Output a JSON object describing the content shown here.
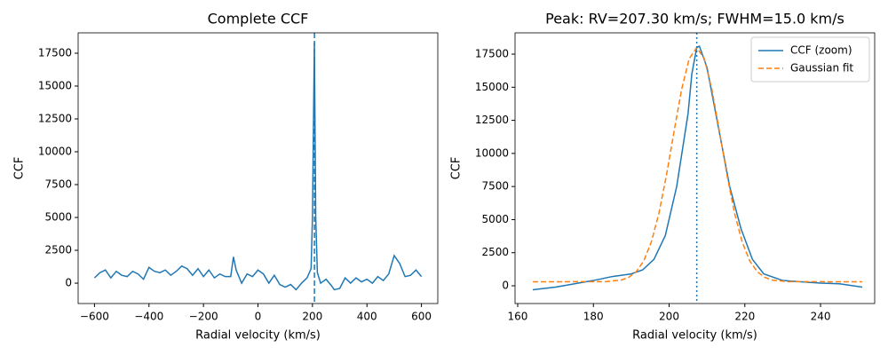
{
  "chart_data": [
    {
      "type": "line",
      "title": "Complete CCF",
      "x_label": "Radial velocity (km/s)",
      "y_label": "CCF",
      "x": [
        -600,
        -580,
        -560,
        -540,
        -520,
        -500,
        -480,
        -460,
        -440,
        -420,
        -400,
        -380,
        -360,
        -340,
        -320,
        -300,
        -280,
        -260,
        -240,
        -220,
        -200,
        -180,
        -160,
        -140,
        -120,
        -100,
        -90,
        -80,
        -60,
        -40,
        -20,
        0,
        20,
        40,
        60,
        80,
        100,
        120,
        140,
        160,
        180,
        195,
        200,
        207,
        212,
        218,
        230,
        250,
        270,
        280,
        300,
        320,
        340,
        360,
        380,
        400,
        420,
        440,
        460,
        480,
        500,
        520,
        540,
        560,
        580,
        600
      ],
      "values": [
        400,
        800,
        1000,
        400,
        900,
        600,
        500,
        900,
        700,
        300,
        1200,
        900,
        800,
        1000,
        600,
        900,
        1300,
        1100,
        600,
        1100,
        500,
        1000,
        400,
        700,
        500,
        500,
        2000,
        1000,
        0,
        700,
        500,
        1000,
        700,
        0,
        600,
        -100,
        -300,
        -100,
        -500,
        0,
        400,
        1100,
        5000,
        18300,
        5000,
        800,
        0,
        300,
        -200,
        -500,
        -400,
        400,
        0,
        400,
        100,
        300,
        0,
        500,
        200,
        700,
        2100,
        1500,
        500,
        600,
        1000,
        500
      ],
      "color": "#1f77b4",
      "vline": 207.3,
      "vline_style": "dashed",
      "xlim": [
        -660,
        660
      ],
      "ylim": [
        -1550,
        19050
      ],
      "xticks": [
        {
          "value": -600,
          "label": "−600"
        },
        {
          "value": -400,
          "label": "−400"
        },
        {
          "value": -200,
          "label": "−200"
        },
        0,
        200,
        400,
        600
      ],
      "yticks": [
        0,
        2500,
        5000,
        7500,
        10000,
        12500,
        15000,
        17500
      ]
    },
    {
      "type": "line",
      "title": "Peak: RV=207.30 km/s; FWHM=15.0 km/s",
      "x_label": "Radial velocity (km/s)",
      "y_label": "CCF",
      "series": [
        {
          "name": "CCF (zoom)",
          "color": "#1f77b4",
          "dash": "solid",
          "x": [
            164,
            170,
            175,
            180,
            185,
            190,
            193,
            196,
            199,
            202,
            205,
            206,
            207.3,
            208,
            210,
            213,
            216,
            219,
            222,
            225,
            230,
            240,
            245,
            251
          ],
          "values": [
            -300,
            -100,
            150,
            400,
            700,
            900,
            1200,
            2000,
            3800,
            7500,
            13000,
            16000,
            18000,
            18100,
            16500,
            12000,
            7500,
            4300,
            2000,
            900,
            400,
            200,
            150,
            -100
          ]
        },
        {
          "name": "Gaussian fit",
          "color": "#ff7f0e",
          "dash": "dashed",
          "x": [
            164,
            183.3,
            187.3,
            189.3,
            191.3,
            193.3,
            195.3,
            197.3,
            199.3,
            201.3,
            203.3,
            205.3,
            207.3,
            209.3,
            211.3,
            213.3,
            215.3,
            217.3,
            219.3,
            221.3,
            223.3,
            225.3,
            227.3,
            231.3,
            251
          ],
          "values": [
            300,
            315,
            430,
            630,
            1060,
            1880,
            3310,
            5470,
            8350,
            11660,
            14830,
            17150,
            18000,
            17150,
            14830,
            11660,
            8350,
            5470,
            3310,
            1880,
            1060,
            630,
            430,
            315,
            300
          ]
        }
      ],
      "vline": 207.3,
      "vline_style": "dotted",
      "vline_color": "#1f77b4",
      "legend": "upper right",
      "xlim": [
        159.3,
        254.3
      ],
      "ylim": [
        -1340,
        19110
      ],
      "xticks": [
        160,
        180,
        200,
        220,
        240
      ],
      "yticks": [
        0,
        2500,
        5000,
        7500,
        10000,
        12500,
        15000,
        17500
      ]
    }
  ]
}
